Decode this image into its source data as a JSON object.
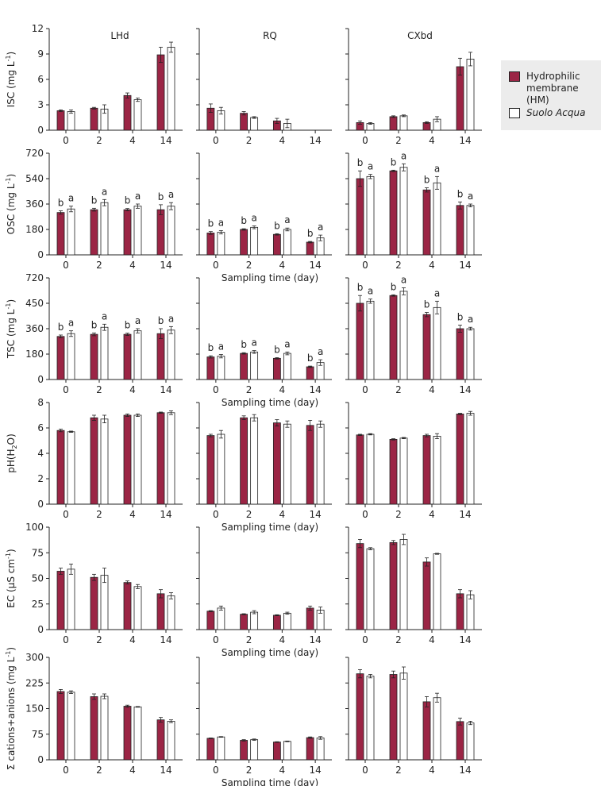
{
  "colors": {
    "hm": "#9b2545",
    "suolo": "#ffffff",
    "axis": "#222222"
  },
  "legend": {
    "items": [
      {
        "key": "hm",
        "label": "Hydrophilic\nmembrane (HM)"
      },
      {
        "key": "suolo",
        "label": "Suolo Acqua"
      }
    ]
  },
  "chart_data": [
    {
      "type": "bar",
      "ylabel": "ISC (mg L-1)",
      "ylabel_main": "ISC (mg L",
      "ylabel_sup": "-1",
      "ylabel_tail": ")",
      "yticks": [
        "0",
        "3",
        "6",
        "9",
        "12"
      ],
      "ylim": [
        0,
        12
      ],
      "xlabel": "",
      "categories": [
        "0",
        "2",
        "4",
        "14"
      ],
      "panels": [
        {
          "title": "LHd",
          "series": [
            {
              "key": "hm",
              "values": [
                2.3,
                2.6,
                4.1,
                8.9
              ],
              "err": [
                0.1,
                0.1,
                0.3,
                0.9
              ]
            },
            {
              "key": "suolo",
              "values": [
                2.2,
                2.5,
                3.6,
                9.8
              ],
              "err": [
                0.2,
                0.5,
                0.2,
                0.6
              ]
            }
          ]
        },
        {
          "title": "RQ",
          "series": [
            {
              "key": "hm",
              "values": [
                2.6,
                2.0,
                1.1,
                0
              ],
              "err": [
                0.5,
                0.2,
                0.3,
                0
              ]
            },
            {
              "key": "suolo",
              "values": [
                2.3,
                1.5,
                0.8,
                0
              ],
              "err": [
                0.4,
                0.1,
                0.5,
                0
              ]
            }
          ]
        },
        {
          "title": "CXbd",
          "series": [
            {
              "key": "hm",
              "values": [
                0.9,
                1.6,
                0.9,
                7.5
              ],
              "err": [
                0.2,
                0.1,
                0.1,
                1.0
              ]
            },
            {
              "key": "suolo",
              "values": [
                0.8,
                1.7,
                1.3,
                8.4
              ],
              "err": [
                0.1,
                0.1,
                0.3,
                0.8
              ]
            }
          ]
        }
      ]
    },
    {
      "type": "bar",
      "ylabel": "OSC (mg L-1)",
      "ylabel_main": "OSC (mg L",
      "ylabel_sup": "-1",
      "ylabel_tail": ")",
      "yticks": [
        "0",
        "180",
        "360",
        "540",
        "720"
      ],
      "ylim": [
        0,
        720
      ],
      "xlabel": "Sampling time (day)",
      "categories": [
        "0",
        "2",
        "4",
        "14"
      ],
      "panels": [
        {
          "title": "",
          "series": [
            {
              "key": "hm",
              "values": [
                300,
                320,
                320,
                320
              ],
              "err": [
                12,
                10,
                8,
                35
              ],
              "letters": [
                "b",
                "b",
                "b",
                "b"
              ]
            },
            {
              "key": "suolo",
              "values": [
                325,
                370,
                345,
                345
              ],
              "err": [
                20,
                22,
                15,
                25
              ],
              "letters": [
                "a",
                "a",
                "a",
                "a"
              ]
            }
          ]
        },
        {
          "title": "",
          "series": [
            {
              "key": "hm",
              "values": [
                155,
                180,
                145,
                90
              ],
              "err": [
                10,
                5,
                5,
                5
              ],
              "letters": [
                "b",
                "b",
                "b",
                "b"
              ]
            },
            {
              "key": "suolo",
              "values": [
                160,
                195,
                180,
                120
              ],
              "err": [
                12,
                10,
                10,
                20
              ],
              "letters": [
                "a",
                "a",
                "a",
                "a"
              ]
            }
          ]
        },
        {
          "title": "",
          "series": [
            {
              "key": "hm",
              "values": [
                540,
                595,
                460,
                350
              ],
              "err": [
                55,
                5,
                15,
                25
              ],
              "letters": [
                "b",
                "b",
                "b",
                "b"
              ]
            },
            {
              "key": "suolo",
              "values": [
                555,
                620,
                510,
                350
              ],
              "err": [
                15,
                25,
                45,
                10
              ],
              "letters": [
                "a",
                "a",
                "a",
                "a"
              ]
            }
          ]
        }
      ]
    },
    {
      "type": "bar",
      "ylabel": "TSC (mg L-1)",
      "ylabel_main": "TSC (mg L",
      "ylabel_sup": "-1",
      "ylabel_tail": ")",
      "yticks": [
        "0",
        "180",
        "360",
        "450",
        "720"
      ],
      "ylim": [
        0,
        720
      ],
      "xlabel": "Sampling time (day)",
      "categories": [
        "0",
        "2",
        "4",
        "14"
      ],
      "panels": [
        {
          "title": "",
          "series": [
            {
              "key": "hm",
              "values": [
                305,
                320,
                320,
                325
              ],
              "err": [
                10,
                10,
                8,
                35
              ],
              "letters": [
                "b",
                "b",
                "b",
                "b"
              ]
            },
            {
              "key": "suolo",
              "values": [
                325,
                370,
                345,
                350
              ],
              "err": [
                20,
                22,
                15,
                25
              ],
              "letters": [
                "a",
                "a",
                "a",
                "a"
              ]
            }
          ]
        },
        {
          "title": "",
          "series": [
            {
              "key": "hm",
              "values": [
                160,
                185,
                150,
                90
              ],
              "err": [
                8,
                5,
                5,
                5
              ],
              "letters": [
                "b",
                "b",
                "b",
                "b"
              ]
            },
            {
              "key": "suolo",
              "values": [
                165,
                195,
                185,
                120
              ],
              "err": [
                12,
                10,
                10,
                20
              ],
              "letters": [
                "a",
                "a",
                "a",
                "a"
              ]
            }
          ]
        },
        {
          "title": "",
          "series": [
            {
              "key": "hm",
              "values": [
                540,
                595,
                460,
                360
              ],
              "err": [
                55,
                5,
                15,
                25
              ],
              "letters": [
                "b",
                "b",
                "b",
                "b"
              ]
            },
            {
              "key": "suolo",
              "values": [
                555,
                625,
                510,
                360
              ],
              "err": [
                15,
                25,
                45,
                10
              ],
              "letters": [
                "a",
                "a",
                "a",
                "a"
              ]
            }
          ]
        }
      ]
    },
    {
      "type": "bar",
      "ylabel": "pH(H2O)",
      "ylabel_main": "pH(H",
      "ylabel_sub": "2",
      "ylabel_tail": "O)",
      "yticks": [
        "0",
        "2",
        "4",
        "6",
        "8"
      ],
      "ylim": [
        0,
        8
      ],
      "xlabel": "Sampling time (day)",
      "categories": [
        "0",
        "2",
        "4",
        "14"
      ],
      "panels": [
        {
          "title": "",
          "series": [
            {
              "key": "hm",
              "values": [
                5.8,
                6.8,
                7.0,
                7.2
              ],
              "err": [
                0.1,
                0.2,
                0.1,
                0.05
              ]
            },
            {
              "key": "suolo",
              "values": [
                5.7,
                6.7,
                7.0,
                7.2
              ],
              "err": [
                0.05,
                0.3,
                0.1,
                0.15
              ]
            }
          ]
        },
        {
          "title": "",
          "series": [
            {
              "key": "hm",
              "values": [
                5.4,
                6.8,
                6.4,
                6.2
              ],
              "err": [
                0.1,
                0.15,
                0.25,
                0.4
              ]
            },
            {
              "key": "suolo",
              "values": [
                5.5,
                6.8,
                6.3,
                6.3
              ],
              "err": [
                0.3,
                0.25,
                0.25,
                0.25
              ]
            }
          ]
        },
        {
          "title": "",
          "series": [
            {
              "key": "hm",
              "values": [
                5.45,
                5.1,
                5.4,
                7.1
              ],
              "err": [
                0.05,
                0.05,
                0.1,
                0.05
              ]
            },
            {
              "key": "suolo",
              "values": [
                5.5,
                5.2,
                5.35,
                7.15
              ],
              "err": [
                0.05,
                0.05,
                0.2,
                0.15
              ]
            }
          ]
        }
      ]
    },
    {
      "type": "bar",
      "ylabel": "EC (µS cm-1)",
      "ylabel_main": "EC (µS cm",
      "ylabel_sup": "-1",
      "ylabel_tail": ")",
      "yticks": [
        "0",
        "25",
        "50",
        "75",
        "100"
      ],
      "ylim": [
        0,
        100
      ],
      "xlabel": "Sampling time (day)",
      "categories": [
        "0",
        "2",
        "4",
        "14"
      ],
      "panels": [
        {
          "title": "",
          "series": [
            {
              "key": "hm",
              "values": [
                57,
                51,
                46,
                35
              ],
              "err": [
                3,
                3,
                1.5,
                4
              ]
            },
            {
              "key": "suolo",
              "values": [
                59,
                53,
                42,
                33
              ],
              "err": [
                5,
                7,
                2,
                3
              ]
            }
          ]
        },
        {
          "title": "",
          "series": [
            {
              "key": "hm",
              "values": [
                18,
                15,
                14,
                21
              ],
              "err": [
                0.5,
                0.5,
                0.5,
                2
              ]
            },
            {
              "key": "suolo",
              "values": [
                21,
                17,
                16,
                19
              ],
              "err": [
                2,
                1.5,
                1,
                3
              ]
            }
          ]
        },
        {
          "title": "",
          "series": [
            {
              "key": "hm",
              "values": [
                84,
                85,
                66,
                35
              ],
              "err": [
                4,
                2,
                4,
                4
              ]
            },
            {
              "key": "suolo",
              "values": [
                79,
                88,
                74,
                34
              ],
              "err": [
                1,
                5,
                0.5,
                4
              ]
            }
          ]
        }
      ]
    },
    {
      "type": "bar",
      "ylabel": "Σ cations+anions (mg L-1)",
      "ylabel_main": "Σ cations+anions  (mg L",
      "ylabel_sup": "-1",
      "ylabel_tail": ")",
      "yticks": [
        "0",
        "75",
        "150",
        "225",
        "300"
      ],
      "ylim": [
        0,
        300
      ],
      "xlabel": "Sampling time (day)",
      "categories": [
        "0",
        "2",
        "4",
        "14"
      ],
      "panels": [
        {
          "title": "",
          "series": [
            {
              "key": "hm",
              "values": [
                200,
                185,
                157,
                117
              ],
              "err": [
                6,
                8,
                3,
                7
              ]
            },
            {
              "key": "suolo",
              "values": [
                198,
                186,
                155,
                113
              ],
              "err": [
                4,
                7,
                1,
                4
              ]
            }
          ]
        },
        {
          "title": "",
          "series": [
            {
              "key": "hm",
              "values": [
                63,
                57,
                52,
                65
              ],
              "err": [
                1,
                2,
                1,
                2
              ]
            },
            {
              "key": "suolo",
              "values": [
                67,
                59,
                54,
                64
              ],
              "err": [
                1,
                2,
                1,
                4
              ]
            }
          ]
        },
        {
          "title": "",
          "series": [
            {
              "key": "hm",
              "values": [
                252,
                250,
                170,
                112
              ],
              "err": [
                12,
                10,
                15,
                10
              ]
            },
            {
              "key": "suolo",
              "values": [
                245,
                254,
                182,
                108
              ],
              "err": [
                5,
                18,
                13,
                5
              ]
            }
          ]
        }
      ]
    }
  ]
}
